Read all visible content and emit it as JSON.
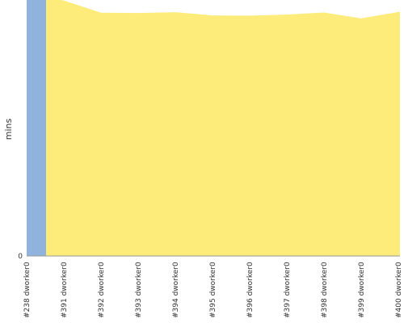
{
  "chart_data": {
    "type": "area",
    "ylabel": "mins",
    "y_tick_labels": [
      "0"
    ],
    "categories": [
      "#238 dworker0",
      "#391 dworker0",
      "#392 dworker0",
      "#393 dworker0",
      "#394 dworker0",
      "#395 dworker0",
      "#396 dworker0",
      "#397 dworker0",
      "#398 dworker0",
      "#399 dworker0",
      "#400 dworker0"
    ],
    "ylim": [
      0,
      100
    ],
    "grid": false,
    "series": [
      {
        "color": "#8fb3dc",
        "values": [
          100,
          0,
          0,
          0,
          0,
          0,
          0,
          0,
          0,
          0,
          0
        ]
      },
      {
        "color": "#fdeb7a",
        "values": [
          0,
          95.6,
          91.0,
          90.9,
          91.2,
          90.0,
          89.9,
          90.3,
          91.1,
          88.9,
          91.4
        ]
      }
    ]
  }
}
